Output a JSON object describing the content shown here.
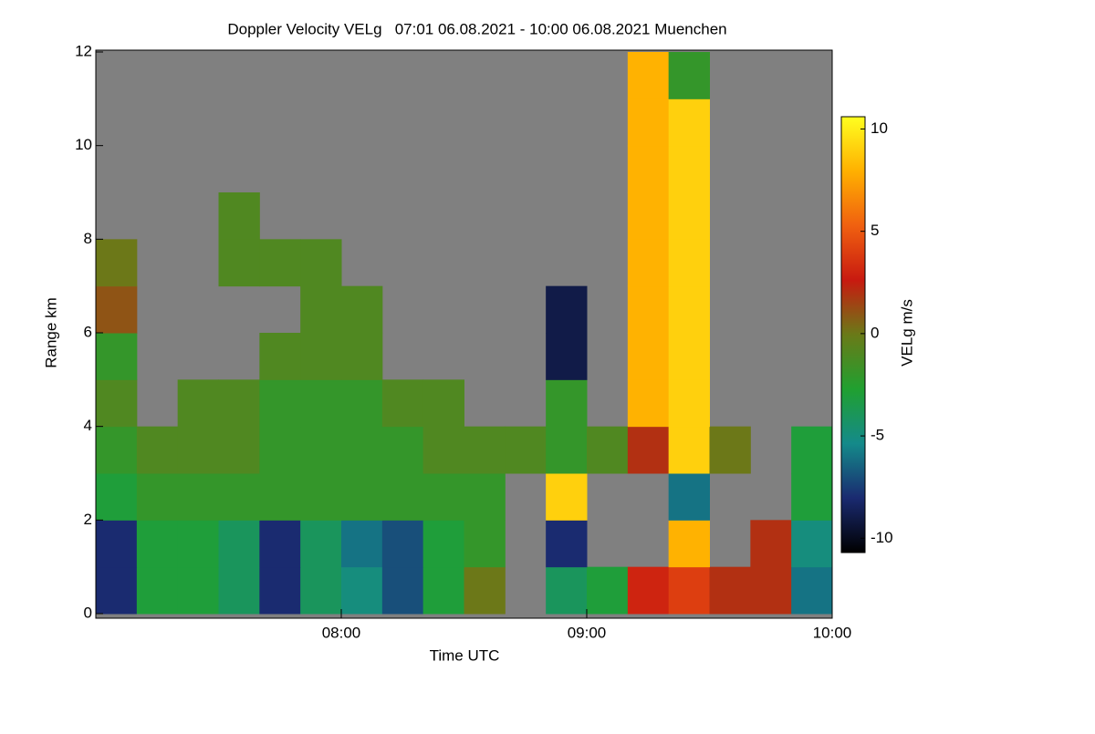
{
  "chart_data": {
    "type": "heatmap",
    "title": "Doppler Velocity VELg   07:01 06.08.2021 - 10:00 06.08.2021 Muenchen",
    "xlabel": "Time UTC",
    "ylabel": "Range km",
    "colorbar_label": "VELg m/s",
    "x": [
      7.0,
      7.1667,
      7.3333,
      7.5,
      7.6667,
      7.8333,
      8.0,
      8.1667,
      8.3333,
      8.5,
      8.6667,
      8.8333,
      9.0,
      9.1667,
      9.3333,
      9.5,
      9.6667,
      9.8333
    ],
    "y": [
      0,
      1,
      2,
      3,
      4,
      5,
      6,
      7,
      8,
      9,
      10,
      11
    ],
    "z": [
      [
        -8,
        -3,
        -3,
        -4,
        -8,
        -4,
        -5,
        -7,
        -3,
        0,
        null,
        -4,
        -3,
        3,
        4,
        2,
        2,
        -6
      ],
      [
        -8,
        -3,
        -3,
        -4,
        -8,
        -4,
        -6,
        -7,
        -3,
        -2,
        null,
        -8,
        null,
        null,
        8,
        null,
        2,
        -5
      ],
      [
        -3,
        -2,
        -2,
        -2,
        -2,
        -2,
        -2,
        -2,
        -2,
        -2,
        null,
        9,
        null,
        null,
        -6,
        null,
        null,
        -3
      ],
      [
        -2,
        -1,
        -1,
        -1,
        -2,
        -2,
        -2,
        -2,
        -1,
        -1,
        -1,
        -2,
        -1,
        2,
        9,
        0,
        null,
        -3
      ],
      [
        -1,
        null,
        -1,
        -1,
        -2,
        -2,
        -2,
        -1,
        -1,
        null,
        null,
        -2,
        null,
        8,
        9,
        null,
        null,
        null
      ],
      [
        -2,
        null,
        null,
        null,
        -1,
        -1,
        -1,
        null,
        null,
        null,
        null,
        -9,
        null,
        8,
        9,
        null,
        null,
        null
      ],
      [
        1,
        null,
        null,
        null,
        null,
        -1,
        -1,
        null,
        null,
        null,
        null,
        -9,
        null,
        8,
        9,
        null,
        null,
        null
      ],
      [
        0,
        null,
        null,
        -1,
        -1,
        -1,
        null,
        null,
        null,
        null,
        null,
        null,
        null,
        8,
        9,
        null,
        null,
        null
      ],
      [
        null,
        null,
        null,
        -1,
        null,
        null,
        null,
        null,
        null,
        null,
        null,
        null,
        null,
        8,
        9,
        null,
        null,
        null
      ],
      [
        null,
        null,
        null,
        null,
        null,
        null,
        null,
        null,
        null,
        null,
        null,
        null,
        null,
        8,
        9,
        null,
        null,
        null
      ],
      [
        null,
        null,
        null,
        null,
        null,
        null,
        null,
        null,
        null,
        null,
        null,
        null,
        null,
        8,
        9,
        null,
        null,
        null
      ],
      [
        null,
        null,
        null,
        null,
        null,
        null,
        null,
        null,
        null,
        null,
        null,
        null,
        null,
        8,
        -2,
        null,
        null,
        null
      ]
    ],
    "xlim": [
      7.0,
      10.0
    ],
    "ylim": [
      0,
      12
    ],
    "zlim": [
      -10.7,
      10.6
    ],
    "xticks": [
      {
        "value": 8,
        "label": "08:00"
      },
      {
        "value": 9,
        "label": "09:00"
      },
      {
        "value": 10,
        "label": "10:00"
      }
    ],
    "yticks": [
      0,
      2,
      4,
      6,
      8,
      10,
      12
    ],
    "zticks": [
      -10,
      -5,
      0,
      5,
      10
    ],
    "colormap": [
      "#000000",
      "#1a2a70",
      "#148a8a",
      "#20a030",
      "#6a7a18",
      "#c81a10",
      "#f06010",
      "#ffb000",
      "#ffff20"
    ],
    "nodata_color": "#808080"
  }
}
